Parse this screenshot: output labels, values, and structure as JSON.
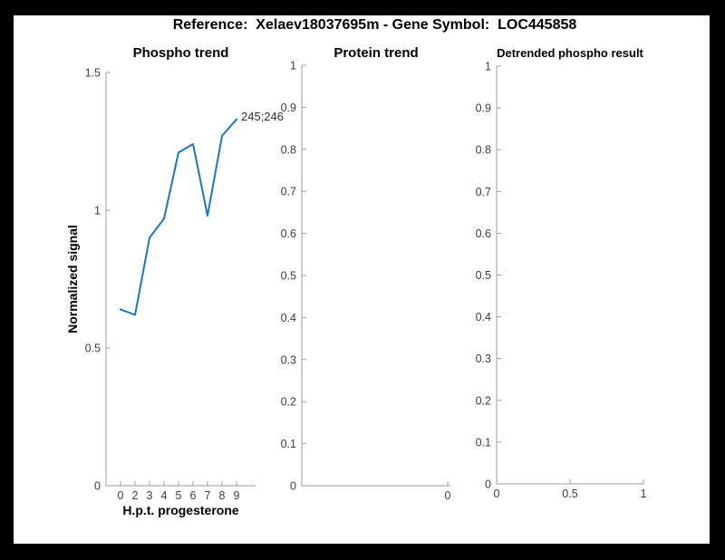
{
  "figure": {
    "title": "Reference:  Xelaev18037695m - Gene Symbol:  LOC445858",
    "colors": {
      "background": "#000000",
      "canvas": "#ffffff",
      "line": "#1878C8",
      "axis": "#9E9E9E",
      "tick_text": "#3D3D3D",
      "label_text": "#000000"
    }
  },
  "chart_data": [
    {
      "type": "line",
      "title": "Phospho trend",
      "xlabel": "H.p.t. progesterone",
      "ylabel": "Normalized signal",
      "categories": [
        "0",
        "2",
        "3",
        "4",
        "5",
        "6",
        "7",
        "8",
        "9"
      ],
      "values": [
        0.64,
        0.62,
        0.9,
        0.97,
        1.21,
        1.24,
        0.98,
        1.27,
        1.33
      ],
      "ylim": [
        0,
        1.5
      ],
      "ytick_values": [
        0,
        0.5,
        1,
        1.5
      ],
      "yticks": [
        "0",
        "0.5",
        "1",
        "1.5"
      ],
      "annotation": "245;246",
      "grid": false,
      "legend": "none"
    },
    {
      "type": "line",
      "title": "Protein trend",
      "xlabel": "",
      "ylabel": "",
      "values": [],
      "ylim": [
        0,
        1
      ],
      "ytick_values": [
        0,
        0.1,
        0.2,
        0.3,
        0.4,
        0.5,
        0.6,
        0.7,
        0.8,
        0.9,
        1
      ],
      "yticks": [
        "0",
        "0.1",
        "0.2",
        "0.3",
        "0.4",
        "0.5",
        "0.6",
        "0.7",
        "0.8",
        "0.9",
        "1"
      ],
      "xticks": [
        "0"
      ],
      "grid": false,
      "legend": "none"
    },
    {
      "type": "line",
      "title": "Detrended phospho result",
      "xlabel": "",
      "ylabel": "",
      "values": [],
      "ylim": [
        0,
        1
      ],
      "xlim": [
        0,
        1
      ],
      "ytick_values": [
        0,
        0.1,
        0.2,
        0.3,
        0.4,
        0.5,
        0.6,
        0.7,
        0.8,
        0.9,
        1
      ],
      "yticks": [
        "0",
        "0.1",
        "0.2",
        "0.3",
        "0.4",
        "0.5",
        "0.6",
        "0.7",
        "0.8",
        "0.9",
        "1"
      ],
      "xtick_values": [
        0,
        0.5,
        1
      ],
      "xticks": [
        "0",
        "0.5",
        "1"
      ],
      "grid": false,
      "legend": "none"
    }
  ]
}
